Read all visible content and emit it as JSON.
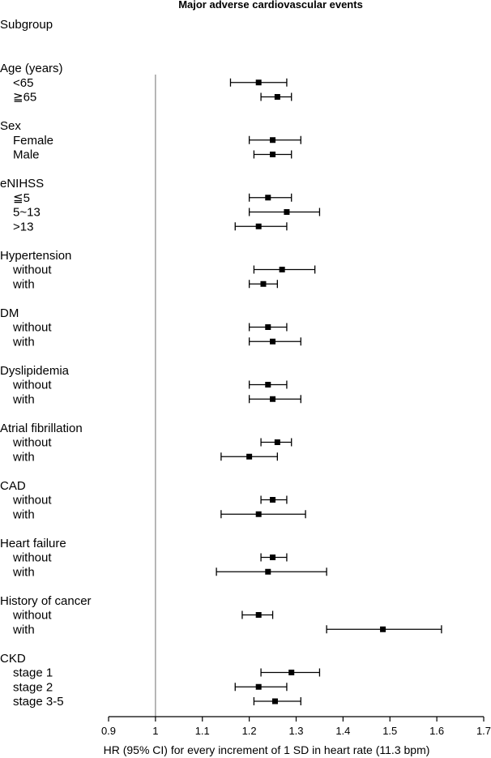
{
  "chart_data": {
    "type": "forest",
    "title": "Major adverse cardiovascular events",
    "column_header": "Subgroup",
    "xlabel": "HR (95% CI) for every increment of 1 SD in heart rate (11.3 bpm)",
    "xlim": [
      0.9,
      1.7
    ],
    "xticks": [
      "0.9",
      "1",
      "1.1",
      "1.2",
      "1.3",
      "1.4",
      "1.5",
      "1.6",
      "1.7"
    ],
    "reference_line": 1,
    "groups": [
      {
        "label": "Age (years)",
        "rows": [
          {
            "label": "<65",
            "hr": 1.22,
            "lo": 1.16,
            "hi": 1.28
          },
          {
            "label": "≧65",
            "hr": 1.26,
            "lo": 1.225,
            "hi": 1.29
          }
        ]
      },
      {
        "label": "Sex",
        "rows": [
          {
            "label": "Female",
            "hr": 1.25,
            "lo": 1.2,
            "hi": 1.31
          },
          {
            "label": "Male",
            "hr": 1.25,
            "lo": 1.21,
            "hi": 1.29
          }
        ]
      },
      {
        "label": "eNIHSS",
        "rows": [
          {
            "label": "≦5",
            "hr": 1.24,
            "lo": 1.2,
            "hi": 1.29
          },
          {
            "label": "5~13",
            "hr": 1.28,
            "lo": 1.2,
            "hi": 1.35
          },
          {
            "label": ">13",
            "hr": 1.22,
            "lo": 1.17,
            "hi": 1.28
          }
        ]
      },
      {
        "label": "Hypertension",
        "rows": [
          {
            "label": "without",
            "hr": 1.27,
            "lo": 1.21,
            "hi": 1.34
          },
          {
            "label": "with",
            "hr": 1.23,
            "lo": 1.2,
            "hi": 1.26
          }
        ]
      },
      {
        "label": "DM",
        "rows": [
          {
            "label": "without",
            "hr": 1.24,
            "lo": 1.2,
            "hi": 1.28
          },
          {
            "label": "with",
            "hr": 1.25,
            "lo": 1.2,
            "hi": 1.31
          }
        ]
      },
      {
        "label": "Dyslipidemia",
        "rows": [
          {
            "label": "without",
            "hr": 1.24,
            "lo": 1.2,
            "hi": 1.28
          },
          {
            "label": "with",
            "hr": 1.25,
            "lo": 1.2,
            "hi": 1.31
          }
        ]
      },
      {
        "label": "Atrial fibrillation",
        "rows": [
          {
            "label": "without",
            "hr": 1.26,
            "lo": 1.225,
            "hi": 1.29
          },
          {
            "label": "with",
            "hr": 1.2,
            "lo": 1.14,
            "hi": 1.26
          }
        ]
      },
      {
        "label": "CAD",
        "rows": [
          {
            "label": "without",
            "hr": 1.25,
            "lo": 1.225,
            "hi": 1.28
          },
          {
            "label": "with",
            "hr": 1.22,
            "lo": 1.14,
            "hi": 1.32
          }
        ]
      },
      {
        "label": "Heart failure",
        "rows": [
          {
            "label": "without",
            "hr": 1.25,
            "lo": 1.225,
            "hi": 1.28
          },
          {
            "label": "with",
            "hr": 1.24,
            "lo": 1.13,
            "hi": 1.365
          }
        ]
      },
      {
        "label": "History of cancer",
        "rows": [
          {
            "label": "without",
            "hr": 1.22,
            "lo": 1.185,
            "hi": 1.25
          },
          {
            "label": "with",
            "hr": 1.485,
            "lo": 1.365,
            "hi": 1.61
          }
        ]
      },
      {
        "label": "CKD",
        "rows": [
          {
            "label": "stage 1",
            "hr": 1.29,
            "lo": 1.225,
            "hi": 1.35
          },
          {
            "label": "stage 2",
            "hr": 1.22,
            "lo": 1.17,
            "hi": 1.28
          },
          {
            "label": "stage 3-5",
            "hr": 1.255,
            "lo": 1.21,
            "hi": 1.31
          }
        ]
      }
    ]
  }
}
